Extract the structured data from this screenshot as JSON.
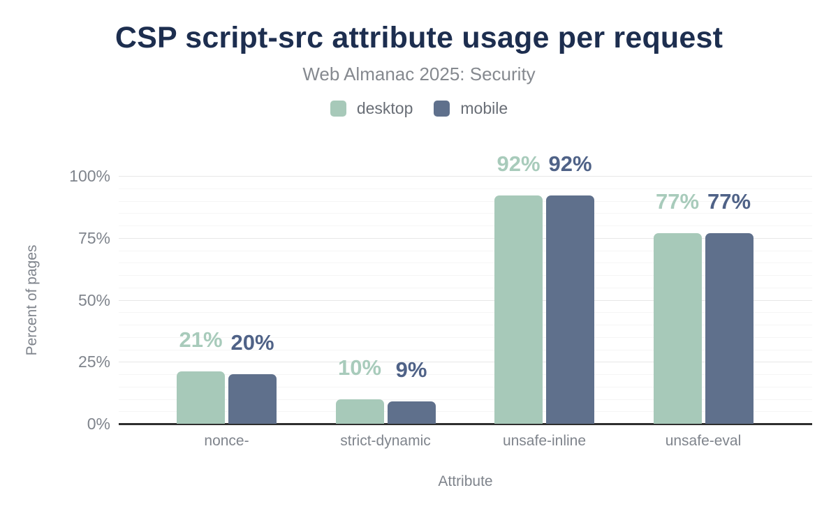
{
  "header": {
    "title": "CSP script-src attribute usage per request",
    "subtitle": "Web Almanac 2025: Security"
  },
  "legend": {
    "items": [
      {
        "label": "desktop",
        "color": "#a7c9b9"
      },
      {
        "label": "mobile",
        "color": "#5f708c"
      }
    ]
  },
  "axes": {
    "y_title": "Percent of pages",
    "x_title": "Attribute",
    "y_tick_labels": [
      "0%",
      "25%",
      "50%",
      "75%",
      "100%"
    ]
  },
  "colors": {
    "title_text": "#1d2e4f",
    "subtitle_text": "#85898f",
    "axis_text": "#7f848c",
    "axis_line": "#2e2e2e",
    "grid_major": "#e7e7e7",
    "grid_minor": "#f5f5f5"
  },
  "chart_data": {
    "type": "bar",
    "title": "CSP script-src attribute usage per request",
    "subtitle": "Web Almanac 2025: Security",
    "xlabel": "Attribute",
    "ylabel": "Percent of pages",
    "categories": [
      "nonce-",
      "strict-dynamic",
      "unsafe-inline",
      "unsafe-eval"
    ],
    "series": [
      {
        "name": "desktop",
        "color": "#a7c9b9",
        "label_color": "#a8cbbb",
        "values": [
          21,
          10,
          92,
          77
        ]
      },
      {
        "name": "mobile",
        "color": "#5f708c",
        "label_color": "#4f6287",
        "values": [
          20,
          9,
          92,
          77
        ]
      }
    ],
    "value_suffix": "%",
    "ylim": [
      0,
      100
    ],
    "yticks": [
      0,
      25,
      50,
      75,
      100
    ],
    "minor_grid_step": 5,
    "grid": true,
    "legend_position": "top",
    "data_labels": true
  }
}
